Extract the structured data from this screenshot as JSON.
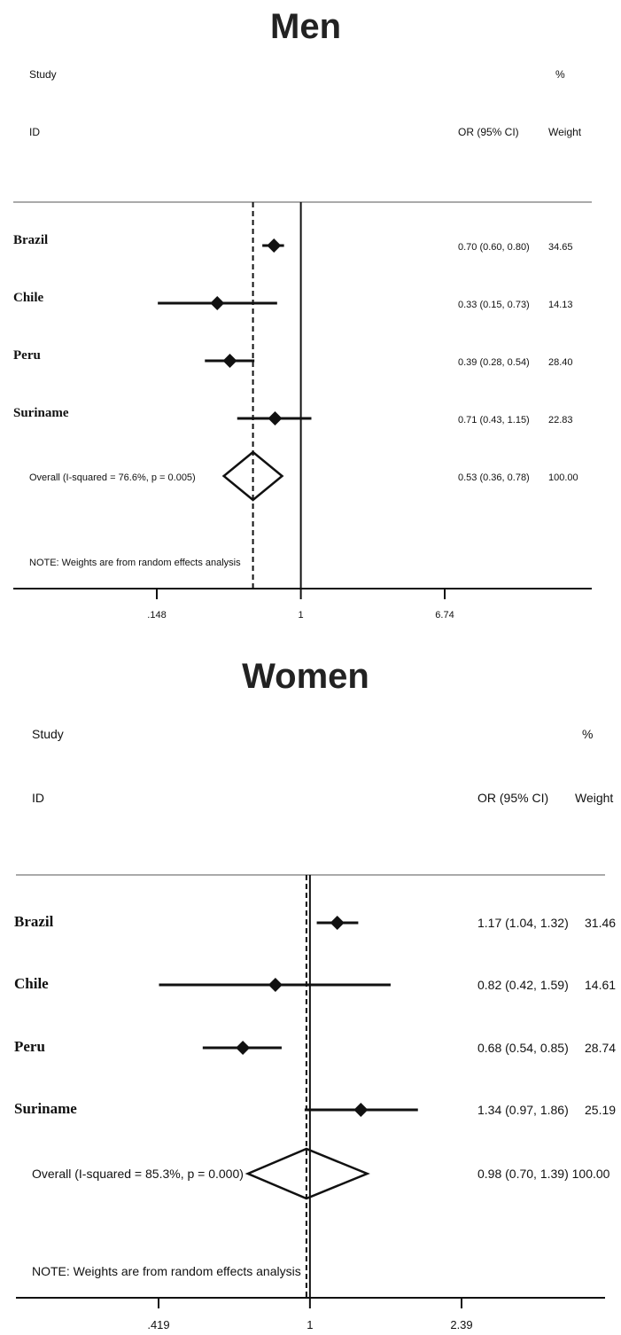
{
  "chart_data": [
    {
      "type": "forest",
      "title": "Men",
      "headers": {
        "study_top": "Study",
        "study_bottom": "ID",
        "or_label": "OR (95% CI)",
        "weight_top": "%",
        "weight_bottom": "Weight"
      },
      "studies": [
        {
          "label": "Brazil",
          "or": 0.7,
          "lo": 0.6,
          "hi": 0.8,
          "ci_text": "0.70 (0.60, 0.80)",
          "weight": "34.65"
        },
        {
          "label": "Chile",
          "or": 0.33,
          "lo": 0.15,
          "hi": 0.73,
          "ci_text": "0.33 (0.15, 0.73)",
          "weight": "14.13"
        },
        {
          "label": "Peru",
          "or": 0.39,
          "lo": 0.28,
          "hi": 0.54,
          "ci_text": "0.39 (0.28, 0.54)",
          "weight": "28.40"
        },
        {
          "label": "Suriname",
          "or": 0.71,
          "lo": 0.43,
          "hi": 1.15,
          "ci_text": "0.71 (0.43, 1.15)",
          "weight": "22.83"
        }
      ],
      "overall": {
        "label": "Overall  (I-squared = 76.6%, p = 0.005)",
        "or": 0.53,
        "lo": 0.36,
        "hi": 0.78,
        "ci_text": "0.53 (0.36, 0.78)",
        "weight": "100.00"
      },
      "note": "NOTE: Weights are from random effects analysis",
      "ticks": [
        {
          "value": 0.148,
          "label": ".148"
        },
        {
          "value": 1,
          "label": "1"
        },
        {
          "value": 6.74,
          "label": "6.74"
        }
      ],
      "x_scale": "log",
      "xlim": [
        0.1,
        18
      ],
      "null_line": 1
    },
    {
      "type": "forest",
      "title": "Women",
      "headers": {
        "study_top": "Study",
        "study_bottom": "ID",
        "or_label": "OR (95% CI)",
        "weight_top": "%",
        "weight_bottom": "Weight"
      },
      "studies": [
        {
          "label": "Brazil",
          "or": 1.17,
          "lo": 1.04,
          "hi": 1.32,
          "ci_text": "1.17 (1.04, 1.32)",
          "weight": "31.46"
        },
        {
          "label": "Chile",
          "or": 0.82,
          "lo": 0.42,
          "hi": 1.59,
          "ci_text": "0.82 (0.42, 1.59)",
          "weight": "14.61"
        },
        {
          "label": "Peru",
          "or": 0.68,
          "lo": 0.54,
          "hi": 0.85,
          "ci_text": "0.68 (0.54, 0.85)",
          "weight": "28.74"
        },
        {
          "label": "Suriname",
          "or": 1.34,
          "lo": 0.97,
          "hi": 1.86,
          "ci_text": "1.34 (0.97, 1.86)",
          "weight": "25.19"
        }
      ],
      "overall": {
        "label": "Overall  (I-squared = 85.3%, p = 0.000)",
        "or": 0.98,
        "lo": 0.7,
        "hi": 1.39,
        "ci_text": "0.98 (0.70, 1.39) 100.00",
        "weight": ""
      },
      "note": "NOTE: Weights are from random effects analysis",
      "ticks": [
        {
          "value": 0.419,
          "label": ".419"
        },
        {
          "value": 1,
          "label": "1"
        },
        {
          "value": 2.39,
          "label": "2.39"
        }
      ],
      "x_scale": "log",
      "xlim": [
        0.3,
        4.5
      ],
      "null_line": 1
    }
  ]
}
